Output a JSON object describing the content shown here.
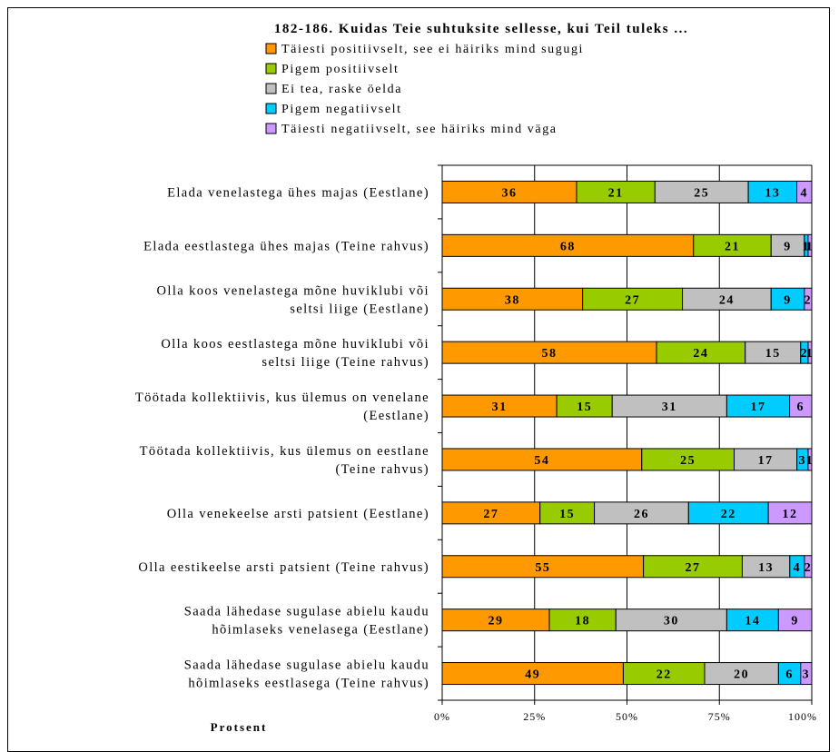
{
  "chart_data": {
    "type": "bar",
    "orientation": "horizontal",
    "stacked": "percent",
    "title": "182-186. Kuidas Teie suhtuksite sellesse, kui Teil tuleks ...",
    "xlabel": "Protsent",
    "ylabel": "",
    "xlim": [
      0,
      100
    ],
    "x_ticks": [
      "0%",
      "25%",
      "50%",
      "75%",
      "100%"
    ],
    "grid": true,
    "legend_position": "top",
    "categories": [
      "Elada venelastega ühes majas (Eestlane)",
      "Elada eestlastega ühes majas (Teine rahvus)",
      "Olla koos venelastega mõne huviklubi või seltsi liige (Eestlane)",
      "Olla koos eestlastega mõne huviklubi või seltsi liige (Teine rahvus)",
      "Töötada kollektiivis, kus ülemus on venelane (Eestlane)",
      "Töötada kollektiivis, kus ülemus on eestlane (Teine rahvus)",
      "Olla venekeelse arsti patsient (Eestlane)",
      "Olla eestikeelse arsti patsient (Teine rahvus)",
      "Saada lähedase sugulase abielu kaudu hõimlaseks venelasega (Eestlane)",
      "Saada lähedase sugulase abielu kaudu hõimlaseks eestlasega (Teine rahvus)"
    ],
    "category_lines": [
      [
        "Elada venelastega ühes majas (Eestlane)"
      ],
      [
        "Elada eestlastega ühes majas (Teine rahvus)"
      ],
      [
        "Olla koos venelastega mõne huviklubi või",
        "seltsi liige (Eestlane)"
      ],
      [
        "Olla koos eestlastega mõne huviklubi või",
        "seltsi liige (Teine rahvus)"
      ],
      [
        "Töötada kollektiivis, kus ülemus on venelane",
        "(Eestlane)"
      ],
      [
        "Töötada kollektiivis, kus ülemus on eestlane",
        "(Teine rahvus)"
      ],
      [
        "Olla venekeelse arsti patsient (Eestlane)"
      ],
      [
        "Olla eestikeelse arsti patsient (Teine rahvus)"
      ],
      [
        "Saada lähedase sugulase abielu kaudu",
        "hõimlaseks venelasega (Eestlane)"
      ],
      [
        "Saada lähedase sugulase abielu kaudu",
        "hõimlaseks eestlasega (Teine rahvus)"
      ]
    ],
    "series": [
      {
        "name": "Täiesti positiivselt, see ei häiriks mind sugugi",
        "color": "#ff9900",
        "values": [
          36,
          68,
          38,
          58,
          31,
          54,
          27,
          55,
          29,
          49
        ]
      },
      {
        "name": "Pigem positiivselt",
        "color": "#99cc00",
        "values": [
          21,
          21,
          27,
          24,
          15,
          25,
          15,
          27,
          18,
          22
        ]
      },
      {
        "name": "Ei tea, raske öelda",
        "color": "#c0c0c0",
        "values": [
          25,
          9,
          24,
          15,
          31,
          17,
          26,
          13,
          30,
          20
        ]
      },
      {
        "name": "Pigem negatiivselt",
        "color": "#00ccff",
        "values": [
          13,
          1,
          9,
          2,
          17,
          3,
          22,
          4,
          14,
          6
        ]
      },
      {
        "name": "Täiesti negatiivselt, see häiriks mind väga",
        "color": "#cc99ff",
        "values": [
          4,
          1,
          2,
          1,
          6,
          1,
          12,
          2,
          9,
          3
        ]
      }
    ]
  }
}
